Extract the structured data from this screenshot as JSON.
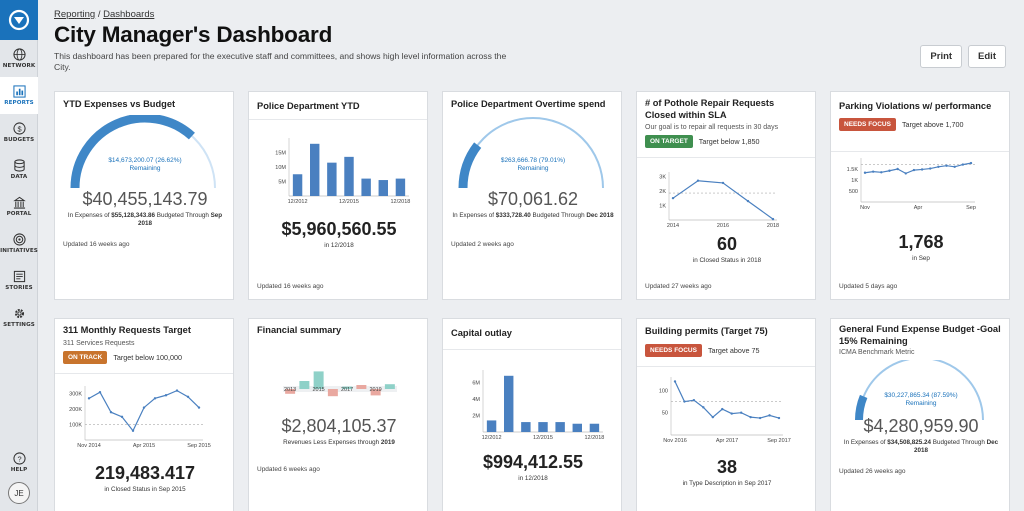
{
  "nav": {
    "items": [
      {
        "label": "NETWORK",
        "icon": "globe-icon"
      },
      {
        "label": "REPORTS",
        "icon": "chart-icon"
      },
      {
        "label": "BUDGETS",
        "icon": "dollar-icon"
      },
      {
        "label": "DATA",
        "icon": "database-icon"
      },
      {
        "label": "PORTAL",
        "icon": "building-icon"
      },
      {
        "label": "INITIATIVES",
        "icon": "target-icon"
      },
      {
        "label": "STORIES",
        "icon": "stories-icon"
      },
      {
        "label": "SETTINGS",
        "icon": "gear-icon"
      }
    ],
    "help": "HELP",
    "avatar": "JE"
  },
  "header": {
    "crumb_reporting": "Reporting",
    "crumb_sep": " / ",
    "crumb_dashboards": "Dashboards",
    "title": "City Manager's Dashboard",
    "description": "This dashboard has been prepared for the executive staff and committees, and shows high level information across the City.",
    "print": "Print",
    "edit": "Edit"
  },
  "cards": {
    "ytd": {
      "title": "YTD Expenses vs Budget",
      "gauge_value": "$14,673,200.07 (26.62%)",
      "gauge_label": "Remaining",
      "gauge_fraction": 0.7338,
      "big": "$40,455,143.79",
      "caption_pre": "In Expenses of ",
      "caption_bold": "$55,128,343.86",
      "caption_mid": " Budgeted Through ",
      "caption_bold2": "Sep 2018",
      "updated": "Updated 16 weeks ago"
    },
    "police": {
      "title": "Police Department YTD",
      "big": "$5,960,560.55",
      "caption": "in 12/2018",
      "updated": "Updated 16 weeks ago"
    },
    "overtime": {
      "title": "Police Department Overtime spend",
      "gauge_value": "$263,666.78 (79.01%)",
      "gauge_label": "Remaining",
      "gauge_fraction": 0.2099,
      "big": "$70,061.62",
      "caption_pre": "In Expenses of ",
      "caption_bold": "$333,728.40",
      "caption_mid": " Budgeted Through ",
      "caption_bold2": "Dec 2018",
      "updated": "Updated 2 weeks ago"
    },
    "pothole": {
      "title": "# of Pothole Repair Requests Closed within SLA",
      "subtitle": "Our goal is to repair all requests in 30 days",
      "badge": "ON TARGET",
      "badge_color": "#3f8f4f",
      "target": "Target below 1,850",
      "big": "60",
      "caption": "in Closed Status in 2018",
      "updated": "Updated 27 weeks ago"
    },
    "parking": {
      "title": "Parking Violations w/ performance",
      "badge": "NEEDS FOCUS",
      "badge_color": "#c8553d",
      "target": "Target above 1,700",
      "big": "1,768",
      "caption": "in Sep",
      "updated": "Updated 5 days ago"
    },
    "requests311": {
      "title": "311 Monthly Requests Target",
      "subtitle": "311 Services Requests",
      "badge": "ON TRACK",
      "badge_color": "#c8742d",
      "target": "Target below 100,000",
      "big": "219,483.417",
      "caption": "in Closed Status in Sep 2015"
    },
    "financial": {
      "title": "Financial summary",
      "big": "$2,804,105.37",
      "caption_pre": "Revenues Less Expenses through ",
      "caption_bold": "2019",
      "updated": "Updated 6 weeks ago"
    },
    "capital": {
      "title": "Capital outlay",
      "big": "$994,412.55",
      "caption": "in 12/2018"
    },
    "permits": {
      "title": "Building permits (Target 75)",
      "badge": "NEEDS FOCUS",
      "badge_color": "#c8553d",
      "target": "Target above 75",
      "big": "38",
      "caption": "in Type Description in Sep 2017"
    },
    "general": {
      "title": "General Fund Expense Budget -Goal 15% Remaining",
      "subtitle": "ICMA Benchmark Metric",
      "gauge_value": "$30,227,865.34 (87.59%)",
      "gauge_label": "Remaining",
      "gauge_fraction": 0.1241,
      "big": "$4,280,959.90",
      "caption_pre": "In Expenses of ",
      "caption_bold": "$34,508,825.24",
      "caption_mid": " Budgeted Through ",
      "caption_bold2": "Dec 2018",
      "updated": "Updated 26 weeks ago"
    }
  },
  "chart_data": [
    {
      "type": "bar",
      "name": "police",
      "categories": [
        "12/2012",
        "",
        "",
        "12/2015",
        "",
        "",
        "12/2018"
      ],
      "values": [
        7.5,
        18,
        11.5,
        13.5,
        6,
        5.5,
        6
      ],
      "ylim": [
        0,
        20
      ],
      "yticks": [
        "15M",
        "10M",
        "5M"
      ],
      "xticks": [
        "12/2012",
        "12/2015",
        "12/2018"
      ]
    },
    {
      "type": "line",
      "name": "pothole",
      "x": [
        2014,
        2015,
        2016,
        2017,
        2018
      ],
      "values": [
        1500,
        2700,
        2550,
        1300,
        60
      ],
      "target": 1850,
      "ylim": [
        0,
        3300
      ],
      "yticks": [
        "3K",
        "2K",
        "1K"
      ],
      "xticks": [
        "2014",
        "2016",
        "2018"
      ]
    },
    {
      "type": "line",
      "name": "parking",
      "values": [
        1330,
        1380,
        1350,
        1420,
        1500,
        1300,
        1450,
        1480,
        1520,
        1600,
        1650,
        1600,
        1700,
        1768
      ],
      "target": 1700,
      "ylim": [
        0,
        2000
      ],
      "yticks": [
        "1.5K",
        "1K",
        "500"
      ],
      "xticks": [
        "Nov",
        "Apr",
        "Sep"
      ]
    },
    {
      "type": "line",
      "name": "requests311",
      "values": [
        270000,
        310000,
        180000,
        150000,
        60000,
        210000,
        270000,
        290000,
        320000,
        280000,
        210000
      ],
      "target": 100000,
      "ylim": [
        0,
        350000
      ],
      "yticks": [
        "300K",
        "200K",
        "100K"
      ],
      "xticks": [
        "Nov 2014",
        "Apr 2015",
        "Sep 2015"
      ]
    },
    {
      "type": "bar",
      "name": "financial",
      "values": [
        -0.6,
        1.0,
        2.2,
        -0.9,
        0.3,
        0.5,
        -0.8,
        0.6
      ],
      "colors": [
        "#e9a8a0",
        "#8fd1c8",
        "#8fd1c8",
        "#e9a8a0",
        "#8fd1c8",
        "#e9a8a0",
        "#e9a8a0",
        "#8fd1c8"
      ],
      "xticks": [
        "2013",
        "2015",
        "2017",
        "2019"
      ]
    },
    {
      "type": "bar",
      "name": "capital",
      "values": [
        1.4,
        6.8,
        1.2,
        1.2,
        1.2,
        1.0,
        1.0
      ],
      "ylim": [
        0,
        7.5
      ],
      "yticks": [
        "6M",
        "4M",
        "2M"
      ],
      "xticks": [
        "12/2012",
        "12/2015",
        "12/2018"
      ]
    },
    {
      "type": "line",
      "name": "permits",
      "values": [
        120,
        75,
        78,
        62,
        40,
        58,
        48,
        50,
        40,
        38,
        44,
        38
      ],
      "target": 75,
      "ylim": [
        0,
        130
      ],
      "yticks": [
        "100",
        "50"
      ],
      "xticks": [
        "Nov 2016",
        "Apr 2017",
        "Sep 2017"
      ]
    }
  ]
}
